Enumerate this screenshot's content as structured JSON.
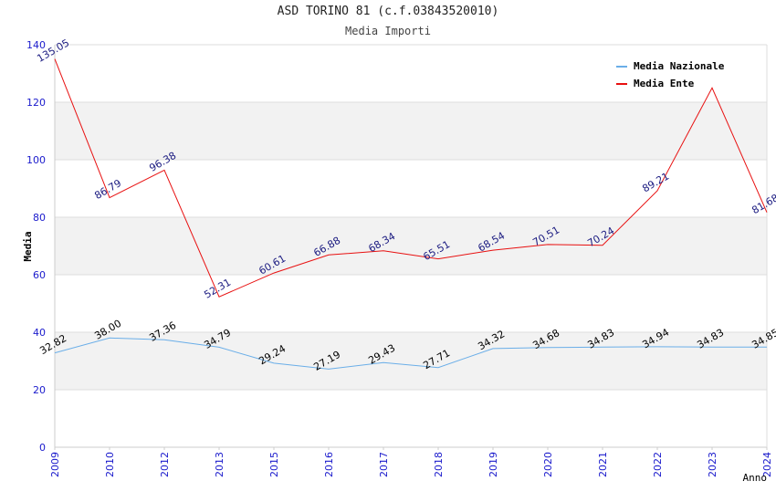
{
  "chart_data": {
    "type": "line",
    "title": "ASD TORINO 81 (c.f.03843520010)",
    "subtitle": "Media Importi",
    "xlabel": "Anno",
    "ylabel": "Media",
    "categories": [
      "2009",
      "2010",
      "2012",
      "2013",
      "2015",
      "2016",
      "2017",
      "2018",
      "2019",
      "2020",
      "2021",
      "2022",
      "2023",
      "2024"
    ],
    "ylim": [
      0,
      140
    ],
    "yticks": [
      0,
      20,
      40,
      60,
      80,
      100,
      120,
      140
    ],
    "grid": true,
    "legend_position": "top-right",
    "series": [
      {
        "name": "Media Nazionale",
        "color": "#6aaee8",
        "label_color": "#000000",
        "values": [
          32.82,
          38.0,
          37.36,
          34.79,
          29.24,
          27.19,
          29.43,
          27.71,
          34.32,
          34.68,
          34.83,
          34.94,
          34.83,
          34.85
        ],
        "labels": [
          "32.82",
          "38.00",
          "37.36",
          "34.79",
          "29.24",
          "27.19",
          "29.43",
          "27.71",
          "34.32",
          "34.68",
          "34.83",
          "34.94",
          "34.83",
          "34.85"
        ]
      },
      {
        "name": "Media Ente",
        "color": "#e81010",
        "label_color": "#1a1a80",
        "values": [
          135.05,
          86.79,
          96.38,
          52.31,
          60.61,
          66.88,
          68.34,
          65.51,
          68.54,
          70.51,
          70.24,
          89.21,
          125.0,
          81.68
        ],
        "labels": [
          "135.05",
          "86.79",
          "96.38",
          "52.31",
          "60.61",
          "66.88",
          "68.34",
          "65.51",
          "68.54",
          "70.51",
          "70.24",
          "89.21",
          "",
          "81.68"
        ]
      }
    ],
    "colors": {
      "axis_text": "#1a1acc",
      "band": "#f2f2f2",
      "grid": "#dddddd",
      "axis": "#cccccc"
    }
  }
}
